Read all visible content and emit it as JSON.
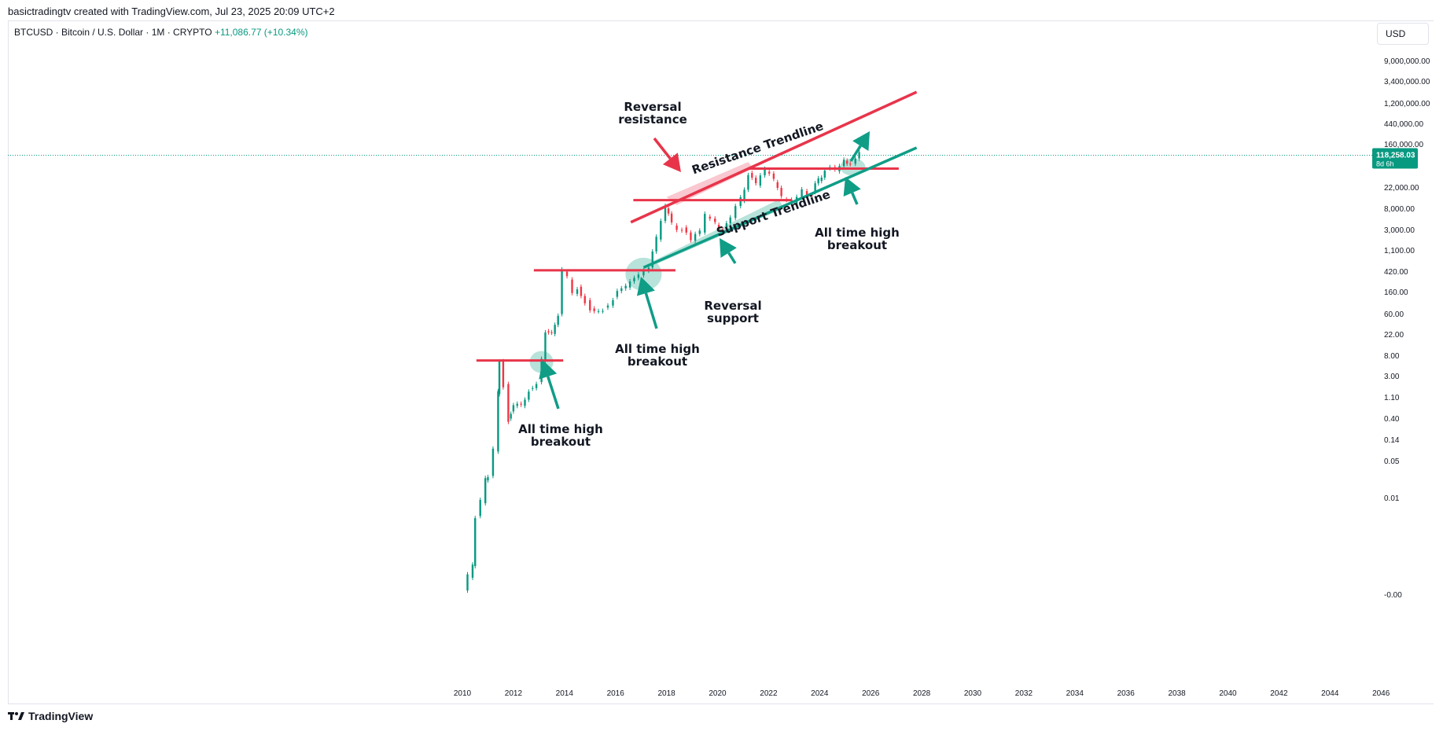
{
  "header": {
    "watermark": "basictradingtv created with TradingView.com, Jul 23, 2025 20:09 UTC+2"
  },
  "legend": {
    "symbol": "BTCUSD · Bitcoin / U.S. Dollar · 1M · CRYPTO",
    "change": "+11,086.77 (+10.34%)"
  },
  "currency": "USD",
  "footer": {
    "brand": "TradingView"
  },
  "colors": {
    "up": "#089981",
    "down": "#f23645",
    "support": "#0f9d86",
    "resistance": "#e8344a"
  },
  "price_label": {
    "value": "118,258.03",
    "countdown": "8d 6h"
  },
  "chart_data": {
    "type": "line",
    "title": "BTCUSD · Bitcoin / U.S. Dollar · 1M · CRYPTO",
    "scale": "log",
    "xlabel": "",
    "ylabel": "",
    "x_ticks": [
      "2010",
      "2012",
      "2014",
      "2016",
      "2018",
      "2020",
      "2022",
      "2024",
      "2026",
      "2028",
      "2030",
      "2032",
      "2034",
      "2036",
      "2038",
      "2040",
      "2042",
      "2044",
      "2046"
    ],
    "y_ticks": [
      "9,000,000.00",
      "3,400,000.00",
      "1,200,000.00",
      "440,000.00",
      "160,000.00",
      "22,000.00",
      "8,000.00",
      "3,000.00",
      "1,100.00",
      "420.00",
      "160.00",
      "60.00",
      "22.00",
      "8.00",
      "3.00",
      "1.10",
      "0.40",
      "0.14",
      "0.05",
      "0.01",
      "-0.00"
    ],
    "last_price": 118258.03,
    "series": [
      {
        "points": [
          [
            2010.0,
            0.003
          ],
          [
            2010.2,
            0.005
          ],
          [
            2010.4,
            0.008
          ],
          [
            2010.5,
            0.06
          ],
          [
            2010.7,
            0.1
          ],
          [
            2010.9,
            0.25
          ],
          [
            2011.0,
            0.3
          ],
          [
            2011.2,
            0.8
          ],
          [
            2011.4,
            8
          ],
          [
            2011.45,
            30
          ],
          [
            2011.6,
            12
          ],
          [
            2011.8,
            3
          ],
          [
            2011.9,
            4
          ],
          [
            2012.0,
            5
          ],
          [
            2012.3,
            5
          ],
          [
            2012.6,
            10
          ],
          [
            2012.9,
            13
          ],
          [
            2013.1,
            30
          ],
          [
            2013.25,
            100
          ],
          [
            2013.5,
            90
          ],
          [
            2013.75,
            200
          ],
          [
            2013.9,
            1100
          ],
          [
            2014.1,
            800
          ],
          [
            2014.3,
            450
          ],
          [
            2014.5,
            600
          ],
          [
            2014.8,
            350
          ],
          [
            2015.0,
            250
          ],
          [
            2015.5,
            260
          ],
          [
            2015.9,
            400
          ],
          [
            2016.4,
            580
          ],
          [
            2016.9,
            950
          ],
          [
            2017.3,
            1300
          ],
          [
            2017.6,
            4000
          ],
          [
            2017.95,
            14000
          ],
          [
            2018.2,
            7000
          ],
          [
            2018.6,
            6500
          ],
          [
            2018.95,
            3800
          ],
          [
            2019.3,
            5300
          ],
          [
            2019.5,
            10000
          ],
          [
            2019.9,
            7200
          ],
          [
            2020.2,
            6500
          ],
          [
            2020.5,
            9500
          ],
          [
            2020.9,
            19000
          ],
          [
            2021.2,
            58000
          ],
          [
            2021.5,
            35000
          ],
          [
            2021.85,
            61000
          ],
          [
            2022.2,
            40000
          ],
          [
            2022.5,
            20000
          ],
          [
            2022.9,
            16500
          ],
          [
            2023.3,
            28000
          ],
          [
            2023.7,
            27000
          ],
          [
            2023.95,
            42000
          ],
          [
            2024.2,
            70000
          ],
          [
            2024.6,
            62000
          ],
          [
            2024.95,
            95000
          ],
          [
            2025.2,
            84000
          ],
          [
            2025.4,
            104000
          ],
          [
            2025.55,
            118258
          ]
        ]
      }
    ],
    "horizontal_levels": [
      {
        "price": 31,
        "from": 2010.55,
        "to": 2013.95
      },
      {
        "price": 1160,
        "from": 2012.8,
        "to": 2018.35
      },
      {
        "price": 19500,
        "from": 2016.7,
        "to": 2022.9
      },
      {
        "price": 69000,
        "from": 2021.2,
        "to": 2027.1
      }
    ],
    "trendlines": [
      {
        "name": "Resistance Trendline",
        "from": [
          2016.6,
          8000
        ],
        "to": [
          2027.8,
          1500000
        ]
      },
      {
        "name": "Support Trendline",
        "from": [
          2017.1,
          1300
        ],
        "to": [
          2027.8,
          160000
        ]
      }
    ],
    "annotations": [
      {
        "id": "ath1_l1",
        "text": "All time high",
        "x": 2013.1,
        "price": 0.9
      },
      {
        "id": "ath1_l2",
        "text": "breakout",
        "x": 2013.1,
        "price": 0.48
      },
      {
        "id": "ath2_l1",
        "text": "All time high",
        "x": 2017.0,
        "price": 12
      },
      {
        "id": "ath2_l2",
        "text": "breakout",
        "x": 2017.0,
        "price": 6.5
      },
      {
        "id": "rs_l1",
        "text": "Reversal",
        "x": 2019.9,
        "price": 95
      },
      {
        "id": "rs_l2",
        "text": "support",
        "x": 2019.9,
        "price": 50
      },
      {
        "id": "rr_l1",
        "text": "Reversal",
        "x": 2016.9,
        "price": 1100000
      },
      {
        "id": "rr_l2",
        "text": "resistance",
        "x": 2016.9,
        "price": 550000
      },
      {
        "id": "ath3_l1",
        "text": "All time high",
        "x": 2025.9,
        "price": 3000
      },
      {
        "id": "ath3_l2",
        "text": "breakout",
        "x": 2025.9,
        "price": 1500
      }
    ],
    "trendline_labels": [
      {
        "id": "res_label",
        "text": "Resistance Trendline"
      },
      {
        "id": "sup_label",
        "text": "Support Trendline"
      }
    ]
  }
}
